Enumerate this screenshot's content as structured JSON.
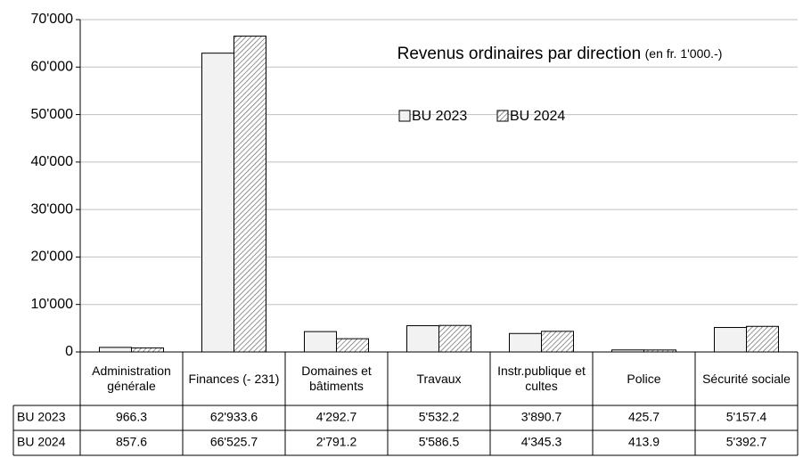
{
  "chart_data": {
    "type": "bar",
    "title": "Revenus ordinaires par direction",
    "subtitle": "(en fr. 1'000.-)",
    "categories": [
      "Administration générale",
      "Finances (- 231)",
      "Domaines et bâtiments",
      "Travaux",
      "Instr.publique et cultes",
      "Police",
      "Sécurité sociale"
    ],
    "series": [
      {
        "name": "BU 2023",
        "color": "#f2f2f2",
        "hatch": false,
        "values": [
          966.3,
          62933.6,
          4292.7,
          5532.2,
          3890.7,
          425.7,
          5157.4
        ],
        "value_labels": [
          "966.3",
          "62'933.6",
          "4'292.7",
          "5'532.2",
          "3'890.7",
          "425.7",
          "5'157.4"
        ]
      },
      {
        "name": "BU 2024",
        "color": "#ffffff",
        "hatch": true,
        "values": [
          857.6,
          66525.7,
          2791.2,
          5586.5,
          4345.3,
          413.9,
          5392.7
        ],
        "value_labels": [
          "857.6",
          "66'525.7",
          "2'791.2",
          "5'586.5",
          "4'345.3",
          "413.9",
          "5'392.7"
        ]
      }
    ],
    "ylim": [
      0,
      70000
    ],
    "yticks": [
      0,
      {
        "value": 10000,
        "label": "10'000"
      },
      {
        "value": 20000,
        "label": "20'000"
      },
      {
        "value": 30000,
        "label": "30'000"
      },
      {
        "value": 40000,
        "label": "40'000"
      },
      {
        "value": 50000,
        "label": "50'000"
      },
      {
        "value": 60000,
        "label": "60'000"
      },
      {
        "value": 70000,
        "label": "70'000"
      }
    ],
    "grid": true
  }
}
